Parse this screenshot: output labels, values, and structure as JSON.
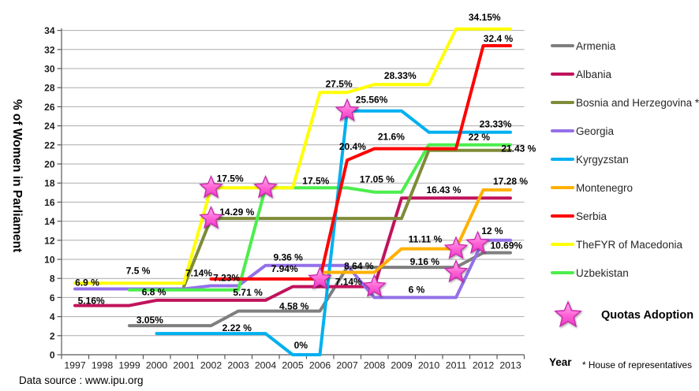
{
  "chart_data": {
    "type": "line",
    "title": "",
    "ylabel": "% of Women  in Parliament",
    "xlabel": "Year",
    "x_ticks": [
      1997,
      1998,
      1999,
      2000,
      2001,
      2002,
      2003,
      2004,
      2005,
      2006,
      2007,
      2008,
      2009,
      2010,
      2011,
      2012,
      2013
    ],
    "ylim": [
      0,
      34
    ],
    "ytick_step": 2,
    "grid": "horizontal",
    "legend_position": "right",
    "series": [
      {
        "name": "Armenia",
        "color": "#7F7F7F",
        "points": [
          [
            1999,
            3.05
          ],
          [
            2002,
            3.05
          ],
          [
            2003,
            4.58
          ],
          [
            2006,
            4.58
          ],
          [
            2007,
            9.16
          ],
          [
            2011,
            9.16
          ],
          [
            2012,
            10.69
          ],
          [
            2013,
            10.69
          ]
        ]
      },
      {
        "name": "Albania",
        "color": "#C0135C",
        "points": [
          [
            1997,
            5.16
          ],
          [
            1999,
            5.16
          ],
          [
            2000,
            5.71
          ],
          [
            2004,
            5.71
          ],
          [
            2005,
            7.14
          ],
          [
            2008,
            7.14
          ],
          [
            2009,
            16.43
          ],
          [
            2013,
            16.43
          ]
        ]
      },
      {
        "name": "Bosnia and Herzegovina *",
        "color": "#7E8C38",
        "points": [
          [
            2001,
            7.14
          ],
          [
            2002,
            14.29
          ],
          [
            2009,
            14.29
          ],
          [
            2010,
            21.43
          ],
          [
            2013,
            21.43
          ]
        ]
      },
      {
        "name": "Georgia",
        "color": "#9470E8",
        "points": [
          [
            1997,
            6.9
          ],
          [
            2001,
            6.9
          ],
          [
            2002,
            7.23
          ],
          [
            2003,
            7.23
          ],
          [
            2004,
            9.36
          ],
          [
            2007,
            9.36
          ],
          [
            2008,
            6
          ],
          [
            2011,
            6
          ],
          [
            2012,
            12
          ],
          [
            2013,
            12
          ]
        ]
      },
      {
        "name": "Kyrgyzstan",
        "color": "#00B0F0",
        "points": [
          [
            2000,
            2.22
          ],
          [
            2004,
            2.22
          ],
          [
            2005,
            0
          ],
          [
            2006,
            0
          ],
          [
            2007,
            25.56
          ],
          [
            2009,
            25.56
          ],
          [
            2010,
            23.33
          ],
          [
            2013,
            23.33
          ]
        ]
      },
      {
        "name": "Montenegro",
        "color": "#FFB000",
        "points": [
          [
            2006,
            8.64
          ],
          [
            2008,
            8.64
          ],
          [
            2009,
            11.11
          ],
          [
            2011,
            11.11
          ],
          [
            2012,
            17.28
          ],
          [
            2013,
            17.28
          ]
        ]
      },
      {
        "name": "Serbia",
        "color": "#FF0000",
        "points": [
          [
            2002,
            7.94
          ],
          [
            2006,
            7.94
          ],
          [
            2007,
            20.4
          ],
          [
            2008,
            21.6
          ],
          [
            2011,
            21.6
          ],
          [
            2012,
            32.4
          ],
          [
            2013,
            32.4
          ]
        ]
      },
      {
        "name": "TheFYR of Macedonia",
        "color": "#FFFF00",
        "points": [
          [
            1997,
            7.5
          ],
          [
            2001,
            7.5
          ],
          [
            2002,
            17.5
          ],
          [
            2005,
            17.5
          ],
          [
            2006,
            27.5
          ],
          [
            2007,
            27.5
          ],
          [
            2008,
            28.33
          ],
          [
            2010,
            28.33
          ],
          [
            2011,
            34.15
          ],
          [
            2013,
            34.15
          ]
        ]
      },
      {
        "name": "Uzbekistan",
        "color": "#4CEE4C",
        "points": [
          [
            1999,
            6.8
          ],
          [
            2003,
            6.8
          ],
          [
            2004,
            17.5
          ],
          [
            2007,
            17.5
          ],
          [
            2008,
            17.05
          ],
          [
            2009,
            17.05
          ],
          [
            2010,
            22
          ],
          [
            2013,
            22
          ]
        ]
      }
    ],
    "data_labels": [
      {
        "text": "3.05%",
        "x": 1999.75,
        "v": 3.05,
        "dy": 3
      },
      {
        "text": "4.58 %",
        "x": 2005.05,
        "v": 4.58,
        "dy": 4
      },
      {
        "text": "9.16 %",
        "x": 2009.85,
        "v": 9.16,
        "dy": 3
      },
      {
        "text": "10.69%",
        "x": 2012.85,
        "v": 10.69,
        "dy": 1
      },
      {
        "text": "5.16%",
        "x": 1997.6,
        "v": 5.16,
        "dy": 4
      },
      {
        "text": "5.71 %",
        "x": 2003.35,
        "v": 5.71,
        "dy": 0
      },
      {
        "text": "7.14%",
        "x": 2007.05,
        "v": 7.14,
        "dy": 4
      },
      {
        "text": "16.43 %",
        "x": 2010.55,
        "v": 16.43,
        "dy": 0
      },
      {
        "text": "7.14%",
        "x": 2001.55,
        "v": 7.14,
        "dy": -7
      },
      {
        "text": "14.29 %",
        "x": 2002.95,
        "v": 14.29,
        "dy": 2
      },
      {
        "text": "21.43 %",
        "x": 2013.3,
        "v": 21.43,
        "dy": 8
      },
      {
        "text": "6.9 %",
        "x": 1997.45,
        "v": 6.9,
        "dy": 2
      },
      {
        "text": "7.23%",
        "x": 2002.57,
        "v": 7.23,
        "dy": 0
      },
      {
        "text": "9.36 %",
        "x": 2004.83,
        "v": 9.36,
        "dy": 0
      },
      {
        "text": "6 %",
        "x": 2009.55,
        "v": 6,
        "dy": 0
      },
      {
        "text": "12 %",
        "x": 2012.33,
        "v": 12,
        "dy": -2
      },
      {
        "text": "2.22 %",
        "x": 2002.95,
        "v": 2.22,
        "dy": 3
      },
      {
        "text": "0%",
        "x": 2005.3,
        "v": 0,
        "dy": -2
      },
      {
        "text": "25.56%",
        "x": 2007.9,
        "v": 25.56,
        "dy": -4
      },
      {
        "text": "23.33%",
        "x": 2012.45,
        "v": 23.33,
        "dy": 0
      },
      {
        "text": "8.64 %",
        "x": 2007.43,
        "v": 8.64,
        "dy": 2
      },
      {
        "text": "11.11 %",
        "x": 2009.87,
        "v": 11.11,
        "dy": -2
      },
      {
        "text": "17.28 %",
        "x": 2013.0,
        "v": 17.28,
        "dy": -1
      },
      {
        "text": "7.94%",
        "x": 2004.7,
        "v": 7.94,
        "dy": -3
      },
      {
        "text": "20.4%",
        "x": 2007.2,
        "v": 20.4,
        "dy": -7
      },
      {
        "text": "21.6%",
        "x": 2008.62,
        "v": 21.6,
        "dy": -5
      },
      {
        "text": "32.4 %",
        "x": 2012.55,
        "v": 32.4,
        "dy": 1
      },
      {
        "text": "7.5 %",
        "x": 1999.32,
        "v": 7.5,
        "dy": -6
      },
      {
        "text": "17.5%",
        "x": 2002.7,
        "v": 17.5,
        "dy": -2
      },
      {
        "text": "27.5%",
        "x": 2006.7,
        "v": 27.5,
        "dy": -1
      },
      {
        "text": "28.33%",
        "x": 2008.95,
        "v": 28.33,
        "dy": -1
      },
      {
        "text": "34.15%",
        "x": 2012.05,
        "v": 34.15,
        "dy": -5
      },
      {
        "text": "6.8 %",
        "x": 1999.9,
        "v": 6.8,
        "dy": 13
      },
      {
        "text": "17.5%",
        "x": 2005.85,
        "v": 17.5,
        "dy": 1
      },
      {
        "text": "17.05 %",
        "x": 2008.1,
        "v": 17.05,
        "dy": -6
      },
      {
        "text": "22 %",
        "x": 2011.85,
        "v": 22,
        "dy": 0
      }
    ],
    "quota_stars": [
      {
        "country": "TheFYR of Macedonia",
        "year": 2002,
        "value": 17.5
      },
      {
        "country": "Bosnia and Herzegovina",
        "year": 2002,
        "value": 14.29
      },
      {
        "country": "Uzbekistan",
        "year": 2004,
        "value": 17.5
      },
      {
        "country": "Serbia",
        "year": 2006,
        "value": 7.94
      },
      {
        "country": "Kyrgyzstan",
        "year": 2007,
        "value": 25.56
      },
      {
        "country": "Albania",
        "year": 2008,
        "value": 7.14
      },
      {
        "country": "Montenegro",
        "year": 2011,
        "value": 11.11
      },
      {
        "country": "Armenia",
        "year": 2011,
        "value": 9.16,
        "dy": 6
      },
      {
        "country": "Georgia",
        "year": 2012,
        "value": 12,
        "dx": -7,
        "dy": 4
      }
    ],
    "star_legend_label": "Quotas Adoption",
    "star_color": "#FF63D5",
    "footnote": "* House of representatives",
    "source": "Data source : www.ipu.org"
  }
}
